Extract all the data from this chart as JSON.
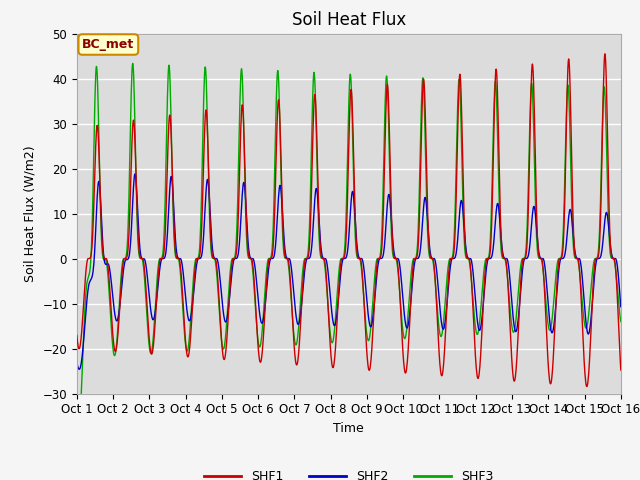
{
  "title": "Soil Heat Flux",
  "ylabel": "Soil Heat Flux (W/m2)",
  "xlabel": "Time",
  "xlim": [
    0,
    360
  ],
  "ylim": [
    -30,
    50
  ],
  "yticks": [
    -30,
    -20,
    -10,
    0,
    10,
    20,
    30,
    40,
    50
  ],
  "xtick_labels": [
    "Oct 1",
    "Oct 2",
    "Oct 3",
    "Oct 4",
    "Oct 5",
    "Oct 6",
    "Oct 7",
    "Oct 8",
    "Oct 9",
    "Oct 10",
    "Oct 11",
    "Oct 12",
    "Oct 13",
    "Oct 14",
    "Oct 15",
    "Oct 16"
  ],
  "xtick_positions": [
    0,
    24,
    48,
    72,
    96,
    120,
    144,
    168,
    192,
    216,
    240,
    264,
    288,
    312,
    336,
    360
  ],
  "colors": {
    "SHF1": "#cc0000",
    "SHF2": "#0000cc",
    "SHF3": "#00aa00"
  },
  "bg_color": "#dcdcdc",
  "grid_color": "#ffffff",
  "annotation_text": "BC_met",
  "annotation_bg": "#ffffcc",
  "annotation_border": "#cc8800",
  "title_fontsize": 12,
  "axis_label_fontsize": 9,
  "tick_fontsize": 8.5
}
